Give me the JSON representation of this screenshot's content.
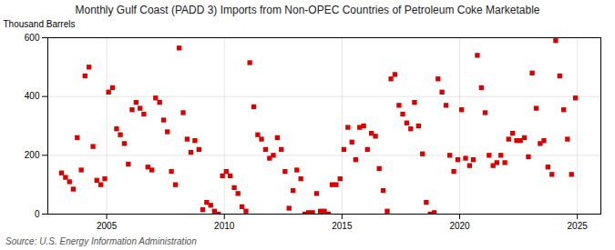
{
  "chart_data": {
    "type": "scatter",
    "title": "Monthly Gulf Coast (PADD 3) Imports from Non-OPEC Countries of Petroleum Coke Marketable",
    "ylabel": "Thousand Barrels",
    "source": "Source: U.S. Energy Information Administration",
    "color": "#dd0000",
    "marker": "square",
    "grid": true,
    "xlim": [
      2002.5,
      2026.0
    ],
    "ylim": [
      0,
      600
    ],
    "xticks": [
      2005,
      2010,
      2015,
      2020,
      2025
    ],
    "yticks": [
      0,
      200,
      400,
      600
    ],
    "x": [
      2003.08,
      2003.25,
      2003.42,
      2003.58,
      2003.75,
      2003.92,
      2004.08,
      2004.25,
      2004.42,
      2004.58,
      2004.75,
      2004.92,
      2005.08,
      2005.25,
      2005.42,
      2005.58,
      2005.75,
      2005.92,
      2006.08,
      2006.25,
      2006.42,
      2006.58,
      2006.75,
      2006.92,
      2007.08,
      2007.25,
      2007.42,
      2007.58,
      2007.75,
      2007.92,
      2008.08,
      2008.25,
      2008.42,
      2008.58,
      2008.75,
      2008.92,
      2009.08,
      2009.25,
      2009.42,
      2009.58,
      2009.75,
      2009.92,
      2010.08,
      2010.25,
      2010.42,
      2010.58,
      2010.75,
      2010.92,
      2011.08,
      2011.25,
      2011.42,
      2011.58,
      2011.75,
      2011.92,
      2012.08,
      2012.25,
      2012.42,
      2012.58,
      2012.75,
      2012.92,
      2013.08,
      2013.25,
      2013.42,
      2013.58,
      2013.75,
      2013.92,
      2014.08,
      2014.25,
      2014.42,
      2014.58,
      2014.75,
      2014.92,
      2015.08,
      2015.25,
      2015.42,
      2015.58,
      2015.75,
      2015.92,
      2016.08,
      2016.25,
      2016.42,
      2016.58,
      2016.75,
      2016.92,
      2017.08,
      2017.25,
      2017.42,
      2017.58,
      2017.75,
      2017.92,
      2018.08,
      2018.25,
      2018.42,
      2018.58,
      2018.75,
      2018.92,
      2019.08,
      2019.25,
      2019.42,
      2019.58,
      2019.75,
      2019.92,
      2020.08,
      2020.25,
      2020.42,
      2020.58,
      2020.75,
      2020.92,
      2021.08,
      2021.25,
      2021.42,
      2021.58,
      2021.75,
      2021.92,
      2022.08,
      2022.25,
      2022.42,
      2022.58,
      2022.75,
      2022.92,
      2023.08,
      2023.25,
      2023.42,
      2023.58,
      2023.75,
      2023.92,
      2024.08,
      2024.25,
      2024.42,
      2024.58,
      2024.75,
      2024.92
    ],
    "values": [
      140,
      125,
      110,
      85,
      260,
      150,
      470,
      500,
      230,
      115,
      100,
      120,
      415,
      430,
      290,
      270,
      240,
      170,
      355,
      380,
      360,
      340,
      160,
      150,
      395,
      380,
      320,
      280,
      145,
      100,
      565,
      345,
      255,
      210,
      250,
      220,
      15,
      40,
      30,
      10,
      0,
      130,
      145,
      130,
      90,
      70,
      25,
      10,
      515,
      365,
      270,
      255,
      220,
      190,
      200,
      260,
      220,
      145,
      20,
      80,
      150,
      120,
      0,
      5,
      5,
      70,
      10,
      10,
      0,
      100,
      100,
      120,
      220,
      295,
      245,
      185,
      295,
      300,
      220,
      275,
      265,
      155,
      80,
      10,
      460,
      475,
      370,
      340,
      310,
      290,
      380,
      300,
      205,
      40,
      0,
      5,
      460,
      415,
      370,
      200,
      145,
      185,
      355,
      190,
      165,
      185,
      540,
      430,
      345,
      200,
      165,
      175,
      200,
      175,
      255,
      275,
      250,
      250,
      260,
      195,
      480,
      360,
      240,
      250,
      160,
      135,
      590,
      470,
      355,
      255,
      135,
      395
    ]
  }
}
